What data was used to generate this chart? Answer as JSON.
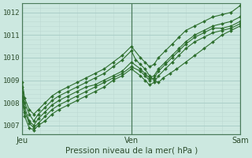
{
  "xlabel": "Pression niveau de la mer( hPa )",
  "bg_color": "#cce8e0",
  "grid_major_color": "#aacec8",
  "grid_minor_color": "#bcd8d2",
  "line_color": "#2d6e2d",
  "ylim": [
    1006.6,
    1012.4
  ],
  "xlim": [
    0,
    96
  ],
  "yticks": [
    1007,
    1008,
    1009,
    1010,
    1011,
    1012
  ],
  "day_labels": [
    "Jeu",
    "Ven",
    "Sam"
  ],
  "day_positions": [
    0,
    48,
    96
  ],
  "series": [
    {
      "x": [
        0,
        1,
        3,
        5,
        7,
        10,
        13,
        16,
        20,
        24,
        28,
        32,
        36,
        40,
        44,
        48,
        52,
        54,
        56,
        58,
        60,
        63,
        66,
        69,
        72,
        76,
        80,
        84,
        88,
        92,
        96
      ],
      "y": [
        1008.5,
        1007.8,
        1007.2,
        1007.0,
        1007.3,
        1007.6,
        1007.9,
        1008.1,
        1008.3,
        1008.5,
        1008.7,
        1008.8,
        1009.0,
        1009.2,
        1009.4,
        1009.8,
        1009.5,
        1009.3,
        1009.1,
        1009.2,
        1009.5,
        1009.8,
        1010.1,
        1010.4,
        1010.7,
        1011.0,
        1011.2,
        1011.4,
        1011.5,
        1011.6,
        1011.8
      ]
    },
    {
      "x": [
        0,
        1,
        3,
        5,
        7,
        10,
        13,
        16,
        20,
        24,
        28,
        32,
        36,
        40,
        44,
        48,
        52,
        54,
        56,
        58,
        60,
        63,
        66,
        69,
        72,
        76,
        80,
        84,
        88,
        92,
        96
      ],
      "y": [
        1008.3,
        1007.6,
        1007.1,
        1006.9,
        1007.1,
        1007.4,
        1007.7,
        1007.9,
        1008.1,
        1008.3,
        1008.5,
        1008.7,
        1008.9,
        1009.1,
        1009.3,
        1009.6,
        1009.4,
        1009.2,
        1009.0,
        1009.1,
        1009.4,
        1009.7,
        1010.0,
        1010.3,
        1010.6,
        1010.9,
        1011.1,
        1011.3,
        1011.3,
        1011.4,
        1011.6
      ]
    },
    {
      "x": [
        0,
        1,
        3,
        5,
        7,
        10,
        13,
        16,
        20,
        24,
        28,
        32,
        36,
        40,
        44,
        48,
        50,
        52,
        54,
        56,
        58,
        60,
        62,
        65,
        68,
        72,
        76,
        80,
        84,
        88,
        92,
        96
      ],
      "y": [
        1008.7,
        1008.0,
        1007.5,
        1007.2,
        1007.5,
        1007.8,
        1008.1,
        1008.3,
        1008.5,
        1008.7,
        1008.9,
        1009.1,
        1009.3,
        1009.6,
        1009.9,
        1010.3,
        1009.9,
        1009.7,
        1009.5,
        1009.2,
        1009.0,
        1008.9,
        1009.1,
        1009.3,
        1009.5,
        1009.8,
        1010.1,
        1010.4,
        1010.7,
        1011.0,
        1011.2,
        1011.4
      ]
    },
    {
      "x": [
        0,
        1,
        3,
        5,
        7,
        10,
        13,
        16,
        20,
        24,
        28,
        32,
        36,
        40,
        44,
        48,
        52,
        54,
        56,
        58,
        60,
        63,
        66,
        69,
        72,
        76,
        80,
        84,
        88,
        92,
        96
      ],
      "y": [
        1008.1,
        1007.4,
        1006.9,
        1006.8,
        1007.0,
        1007.2,
        1007.5,
        1007.7,
        1007.9,
        1008.1,
        1008.3,
        1008.5,
        1008.7,
        1009.0,
        1009.2,
        1009.5,
        1009.2,
        1009.0,
        1008.8,
        1008.9,
        1009.2,
        1009.5,
        1009.8,
        1010.1,
        1010.4,
        1010.7,
        1010.9,
        1011.1,
        1011.2,
        1011.3,
        1011.5
      ]
    },
    {
      "x": [
        0,
        1,
        3,
        5,
        7,
        10,
        13,
        16,
        20,
        24,
        28,
        32,
        36,
        40,
        44,
        48,
        52,
        54,
        56,
        58,
        60,
        63,
        66,
        69,
        72,
        76,
        80,
        84,
        88,
        92,
        96
      ],
      "y": [
        1008.9,
        1008.2,
        1007.7,
        1007.5,
        1007.7,
        1008.0,
        1008.3,
        1008.5,
        1008.7,
        1008.9,
        1009.1,
        1009.3,
        1009.5,
        1009.8,
        1010.1,
        1010.5,
        1010.0,
        1009.8,
        1009.6,
        1009.7,
        1010.0,
        1010.3,
        1010.6,
        1010.9,
        1011.2,
        1011.4,
        1011.6,
        1011.8,
        1011.9,
        1012.0,
        1012.3
      ]
    }
  ]
}
